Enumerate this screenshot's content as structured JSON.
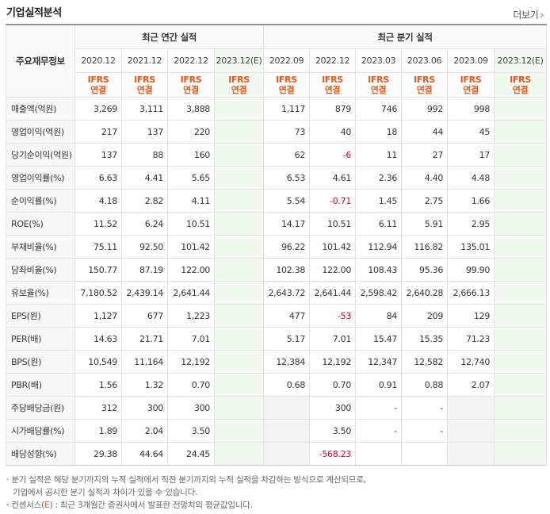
{
  "header": {
    "title": "기업실적분석",
    "more_label": "더보기"
  },
  "table": {
    "corner_label": "주요재무정보",
    "group_annual": "최근 연간 실적",
    "group_quarter": "최근 분기 실적",
    "periods": [
      "2020.12",
      "2021.12",
      "2022.12",
      "2023.12(E)",
      "2022.09",
      "2022.12",
      "2023.03",
      "2023.06",
      "2023.09",
      "2023.12(E)"
    ],
    "basis_top": "IFRS",
    "basis_bottom": "연결",
    "rows": [
      {
        "label": "매출액(억원)",
        "values": [
          "3,269",
          "3,111",
          "3,888",
          "",
          "1,117",
          "879",
          "746",
          "992",
          "998",
          ""
        ]
      },
      {
        "label": "영업이익(억원)",
        "values": [
          "217",
          "137",
          "220",
          "",
          "73",
          "40",
          "18",
          "44",
          "45",
          ""
        ]
      },
      {
        "label": "당기순이익(억원)",
        "values": [
          "137",
          "88",
          "160",
          "",
          "62",
          "-6",
          "11",
          "27",
          "17",
          ""
        ]
      },
      {
        "label": "영업이익률(%)",
        "values": [
          "6.63",
          "4.41",
          "5.65",
          "",
          "6.53",
          "4.61",
          "2.36",
          "4.40",
          "4.48",
          ""
        ]
      },
      {
        "label": "순이익률(%)",
        "values": [
          "4.18",
          "2.82",
          "4.11",
          "",
          "5.54",
          "-0.71",
          "1.45",
          "2.75",
          "1.66",
          ""
        ]
      },
      {
        "label": "ROE(%)",
        "values": [
          "11.52",
          "6.24",
          "10.51",
          "",
          "14.17",
          "10.51",
          "6.11",
          "5.91",
          "2.95",
          ""
        ]
      },
      {
        "label": "부채비율(%)",
        "values": [
          "75.11",
          "92.50",
          "101.42",
          "",
          "96.22",
          "101.42",
          "112.94",
          "116.82",
          "135.01",
          ""
        ]
      },
      {
        "label": "당좌비율(%)",
        "values": [
          "150.77",
          "87.19",
          "122.00",
          "",
          "102.38",
          "122.00",
          "108.43",
          "95.36",
          "99.90",
          ""
        ]
      },
      {
        "label": "유보율(%)",
        "values": [
          "7,180.52",
          "2,439.14",
          "2,641.44",
          "",
          "2,643.72",
          "2,641.44",
          "2,598.42",
          "2,640.28",
          "2,666.13",
          ""
        ]
      },
      {
        "label": "EPS(원)",
        "values": [
          "1,127",
          "677",
          "1,223",
          "",
          "477",
          "-53",
          "84",
          "209",
          "129",
          ""
        ]
      },
      {
        "label": "PER(배)",
        "values": [
          "14.63",
          "21.71",
          "7.01",
          "",
          "5.17",
          "7.01",
          "15.47",
          "15.35",
          "71.23",
          ""
        ]
      },
      {
        "label": "BPS(원)",
        "values": [
          "10,549",
          "11,164",
          "12,192",
          "",
          "12,384",
          "12,192",
          "12,347",
          "12,582",
          "12,740",
          ""
        ]
      },
      {
        "label": "PBR(배)",
        "values": [
          "1.56",
          "1.32",
          "0.70",
          "",
          "0.68",
          "0.70",
          "0.91",
          "0.88",
          "2.07",
          ""
        ]
      },
      {
        "label": "주당배당금(원)",
        "values": [
          "312",
          "300",
          "300",
          "",
          "",
          "300",
          "-",
          "-",
          "",
          ""
        ]
      },
      {
        "label": "시가배당률(%)",
        "values": [
          "1.89",
          "2.04",
          "3.50",
          "",
          "",
          "3.50",
          "-",
          "-",
          "",
          ""
        ]
      },
      {
        "label": "배당성향(%)",
        "values": [
          "29.38",
          "44.64",
          "24.45",
          "",
          "",
          "-568.23",
          "",
          "",
          "",
          ""
        ]
      }
    ]
  },
  "notes": {
    "line1": "분기 실적은 해당 분기까지의 누적 실적에서 직전 분기까지의 누적 실적을 차감하는 방식으로 계산되므로,",
    "line2": "기업에서 공시한 분기 실적과 차이가 있을 수 있습니다.",
    "line3_pre": "컨센서스(",
    "line3_e": "E",
    "line3_post": ") : 최근 3개월간 증권사에서 발표한 전망치의 평균값입니다."
  },
  "colors": {
    "accent_orange": "#e8561a",
    "negative_red": "#e0001b",
    "estimate_bg": "#f1f8ef"
  }
}
